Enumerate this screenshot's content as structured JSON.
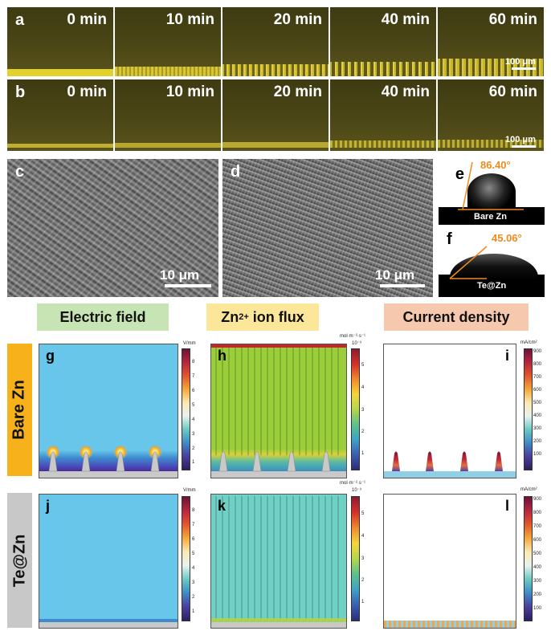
{
  "panel_a": {
    "letter": "a",
    "times": [
      "0 min",
      "10 min",
      "20 min",
      "40 min",
      "60 min"
    ],
    "scale": "100 μm"
  },
  "panel_b": {
    "letter": "b",
    "times": [
      "0 min",
      "10 min",
      "20 min",
      "40 min",
      "60 min"
    ],
    "scale": "100 μm"
  },
  "panel_c": {
    "letter": "c",
    "scale": "10 μm"
  },
  "panel_d": {
    "letter": "d",
    "scale": "10 μm"
  },
  "panel_e": {
    "letter": "e",
    "angle": "86.40°",
    "label": "Bare Zn"
  },
  "panel_f": {
    "letter": "f",
    "angle": "45.06°",
    "label": "Te@Zn"
  },
  "headers": {
    "electric_field": "Electric field",
    "ion_flux_main": "Zn",
    "ion_flux_sup": "2+",
    "ion_flux_rest": " ion flux",
    "current_density": "Current density"
  },
  "rows": {
    "bare": "Bare Zn",
    "te": "Te@Zn"
  },
  "colors": {
    "electric_field_bg": "#c6e4b4",
    "ion_flux_bg": "#fbe69a",
    "current_density_bg": "#f6c9ae",
    "bare_tag": "#f7b21b",
    "te_tag": "#c8c8c8",
    "angle_text": "#f08a1c"
  },
  "colorbars": {
    "efield": {
      "unit": "V/mm",
      "ticks": [
        "8",
        "7",
        "6",
        "5",
        "4",
        "3",
        "2",
        "1"
      ]
    },
    "flux": {
      "unit": "mol·m⁻²·s⁻¹",
      "exp": "10⁻³",
      "ticks": [
        "5",
        "4",
        "3",
        "2",
        "1"
      ]
    },
    "current": {
      "unit": "mA/cm²",
      "ticks": [
        "900",
        "800",
        "700",
        "600",
        "500",
        "400",
        "300",
        "200",
        "100"
      ]
    }
  },
  "sim_letters": {
    "g": "g",
    "h": "h",
    "i": "i",
    "j": "j",
    "k": "k",
    "l": "l"
  }
}
